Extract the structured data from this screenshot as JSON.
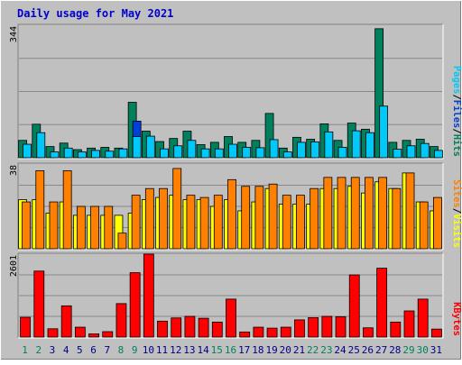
{
  "chart_data": {
    "type": "bar",
    "title": "Daily usage for May 2021",
    "colors": {
      "background": "#c0c0c0",
      "frame_light": "#ffffff",
      "frame_dark": "#808080",
      "title": "#0000cc",
      "hits": "#00805c",
      "files": "#00c8f8",
      "files_highlight": "#0040d8",
      "sites": "#ff8000",
      "visits": "#ffff00",
      "kbytes": "#ff0000",
      "weekday_label": "#000080",
      "weekend_label": "#00805c",
      "legend_pages": "#00c8f8",
      "legend_files": "#0040d8",
      "legend_hits": "#00805c",
      "legend_sites": "#ff8000",
      "legend_visits": "#ffff00",
      "legend_kbytes": "#ff0000"
    },
    "categories": [
      "1",
      "2",
      "3",
      "4",
      "5",
      "6",
      "7",
      "8",
      "9",
      "10",
      "11",
      "12",
      "13",
      "14",
      "15",
      "16",
      "17",
      "18",
      "19",
      "20",
      "21",
      "22",
      "23",
      "24",
      "25",
      "26",
      "27",
      "28",
      "29",
      "30",
      "31"
    ],
    "weekend_days": [
      "1",
      "2",
      "8",
      "9",
      "15",
      "16",
      "22",
      "23",
      "29",
      "30"
    ],
    "panels": [
      {
        "name": "hits-files",
        "ymax": 344,
        "ymax_label": "344",
        "legend": [
          "Pages",
          "Files",
          "Hits"
        ],
        "series": [
          {
            "name": "Hits",
            "values": [
              45,
              87,
              29,
              38,
              21,
              25,
              27,
              25,
              144,
              69,
              42,
              50,
              69,
              34,
              40,
              55,
              40,
              45,
              115,
              25,
              53,
              48,
              88,
              45,
              90,
              74,
              335,
              40,
              45,
              48,
              29
            ]
          },
          {
            "name": "Pages",
            "values": [
              0,
              0,
              0,
              0,
              0,
              0,
              0,
              0,
              95,
              0,
              0,
              0,
              0,
              0,
              0,
              0,
              0,
              0,
              0,
              0,
              0,
              0,
              0,
              0,
              0,
              0,
              0,
              0,
              0,
              0,
              0
            ]
          },
          {
            "name": "Files",
            "values": [
              35,
              65,
              15,
              25,
              15,
              19,
              17,
              23,
              55,
              56,
              23,
              31,
              45,
              23,
              23,
              35,
              27,
              26,
              47,
              15,
              40,
              41,
              67,
              27,
              70,
              65,
              134,
              22,
              31,
              37,
              19
            ]
          }
        ]
      },
      {
        "name": "sites-visits",
        "ymax": 38,
        "ymax_label": "38",
        "legend": [
          "Sites",
          "Visits"
        ],
        "series": [
          {
            "name": "Visits",
            "values": [
              22,
              22,
              16,
              21,
              15,
              15,
              15,
              15,
              16,
              22,
              23,
              24,
              22,
              22,
              19,
              22,
              17,
              21,
              27,
              20,
              20,
              20,
              27,
              27,
              28,
              25,
              30,
              27,
              34,
              21,
              17
            ]
          },
          {
            "name": "Sites",
            "values": [
              21,
              35,
              21,
              35,
              19,
              19,
              19,
              7,
              24,
              27,
              27,
              36,
              24,
              23,
              24,
              31,
              28,
              28,
              29,
              24,
              24,
              27,
              32,
              32,
              32,
              32,
              32,
              27,
              34,
              21,
              23
            ]
          }
        ]
      },
      {
        "name": "kbytes",
        "ymax": 2601,
        "ymax_label": "2601",
        "legend": [
          "KBytes"
        ],
        "series": [
          {
            "name": "KBytes",
            "values": [
              620,
              2070,
              260,
              980,
              310,
              100,
              170,
              1050,
              2020,
              2601,
              500,
              600,
              650,
              590,
              470,
              1190,
              160,
              310,
              280,
              310,
              540,
              610,
              650,
              640,
              1950,
              290,
              2160,
              470,
              820,
              1190,
              250
            ]
          }
        ]
      }
    ]
  }
}
